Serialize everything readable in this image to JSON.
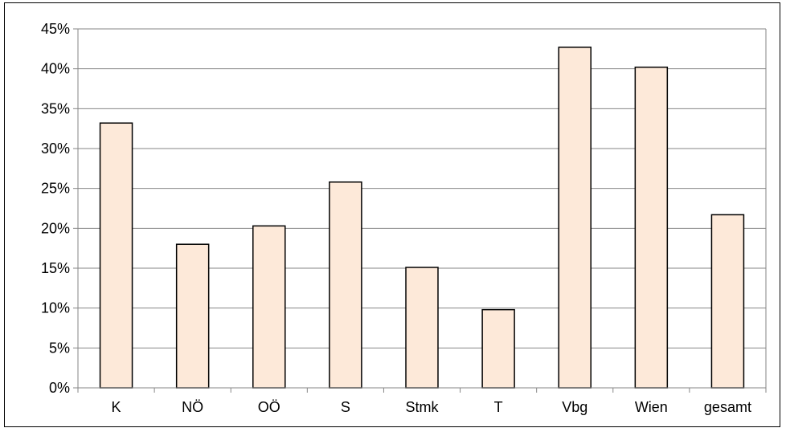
{
  "chart_data": {
    "type": "bar",
    "categories": [
      "K",
      "NÖ",
      "OÖ",
      "S",
      "Stmk",
      "T",
      "Vbg",
      "Wien",
      "gesamt"
    ],
    "values": [
      33.2,
      18.0,
      20.3,
      25.8,
      15.1,
      9.8,
      42.7,
      40.2,
      21.7
    ],
    "ylim": [
      0,
      45
    ],
    "yticks": [
      "0%",
      "5%",
      "10%",
      "15%",
      "20%",
      "25%",
      "30%",
      "35%",
      "40%",
      "45%"
    ],
    "ytick_values": [
      0,
      5,
      10,
      15,
      20,
      25,
      30,
      35,
      40,
      45
    ],
    "grid": true,
    "legend": "none",
    "colors": {
      "bar_fill": "#fde9d9",
      "bar_stroke": "#000000",
      "grid": "#868686",
      "axis": "#868686"
    }
  }
}
